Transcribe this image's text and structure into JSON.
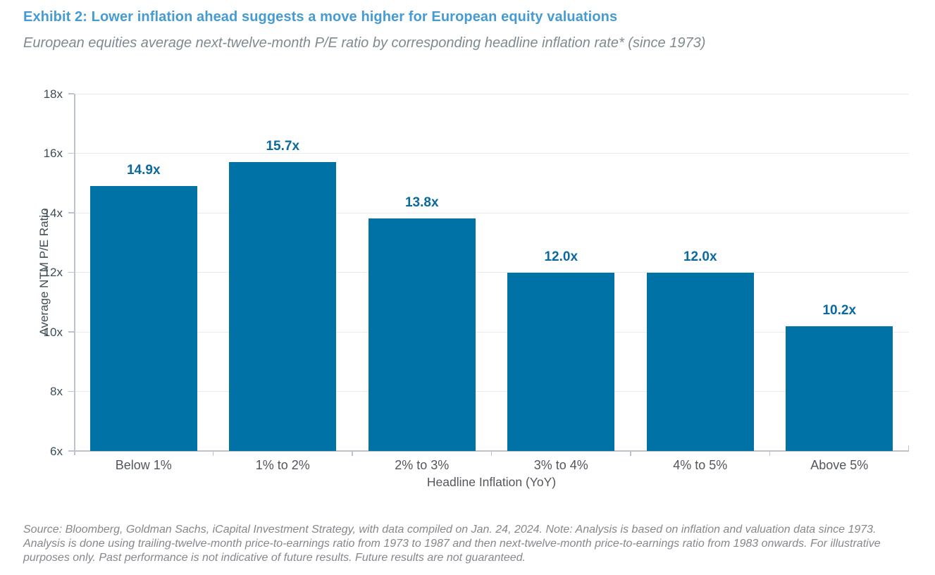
{
  "header": {
    "title": "Exhibit 2: Lower inflation ahead suggests a move higher for European equity valuations",
    "subtitle": "European equities average next-twelve-month P/E ratio by corresponding headline inflation rate* (since 1973)"
  },
  "chart_data": {
    "type": "bar",
    "categories": [
      "Below 1%",
      "1% to 2%",
      "2% to 3%",
      "3% to 4%",
      "4% to 5%",
      "Above 5%"
    ],
    "values": [
      14.9,
      15.7,
      13.8,
      12.0,
      12.0,
      10.2
    ],
    "value_labels": [
      "14.9x",
      "15.7x",
      "13.8x",
      "12.0x",
      "12.0x",
      "10.2x"
    ],
    "title": "",
    "xlabel": "Headline Inflation (YoY)",
    "ylabel": "Average NTM P/E Ratio",
    "ylim": [
      6,
      18
    ],
    "ytick_step": 2,
    "ytick_labels": [
      "6x",
      "8x",
      "10x",
      "12x",
      "14x",
      "16x",
      "18x"
    ],
    "grid": "horizontal",
    "legend": "none"
  },
  "colors": {
    "title_blue": "#469BD2",
    "bar_fill": "#0072A6",
    "value_label": "#0A69A0",
    "axis_line": "#BCC3CF",
    "gridline": "#E9EBF3",
    "tick_label": "#3C4C56",
    "category_label": "#53565B",
    "note_gray": "#85878C"
  },
  "footer": {
    "source_note": "Source: Bloomberg, Goldman Sachs, iCapital Investment Strategy, with data compiled on Jan. 24, 2024. Note: Analysis is based on inflation and valuation data since 1973. Analysis is done using trailing-twelve-month price-to-earnings ratio from 1973 to 1987 and then next-twelve-month price-to-earnings ratio from 1983 onwards. For illustrative purposes only. Past performance is not indicative of future results. Future results are not guaranteed."
  }
}
